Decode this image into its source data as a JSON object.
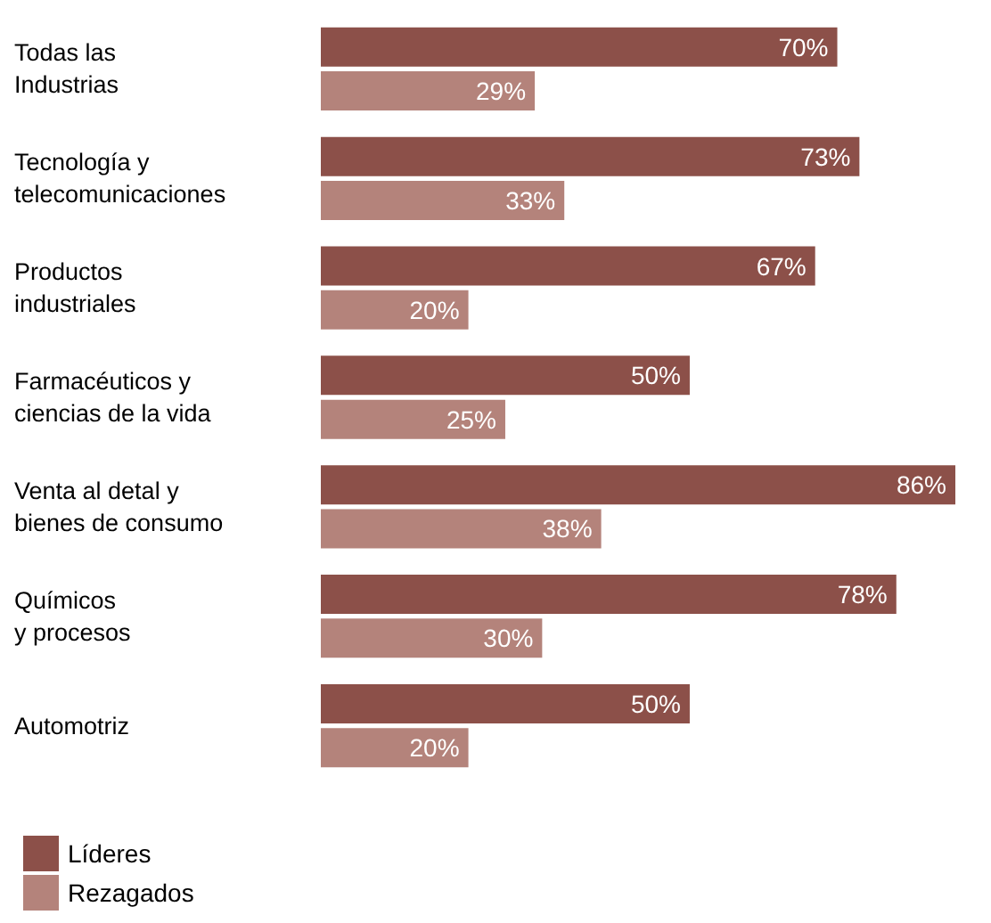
{
  "chart_data": {
    "type": "bar",
    "orientation": "horizontal",
    "categories": [
      "Todas las\nIndustrias",
      "Tecnología y\ntelecomunicaciones",
      "Productos\nindustriales",
      "Farmacéuticos y\nciencias de la vida",
      "Venta al detal y\nbienes de consumo",
      "Químicos\ny procesos",
      "Automotriz"
    ],
    "series": [
      {
        "name": "Líderes",
        "color": "#8c5049",
        "values": [
          70,
          73,
          67,
          50,
          86,
          78,
          50
        ],
        "value_labels": [
          "70%",
          "73%",
          "67%",
          "50%",
          "86%",
          "78%",
          "50%"
        ]
      },
      {
        "name": "Rezagados",
        "color": "#b4837b",
        "values": [
          29,
          33,
          20,
          25,
          38,
          30,
          20
        ],
        "value_labels": [
          "29%",
          "33%",
          "20%",
          "25%",
          "38%",
          "30%",
          "20%"
        ]
      }
    ],
    "legend": "bottom left",
    "tick_labels": "y"
  }
}
